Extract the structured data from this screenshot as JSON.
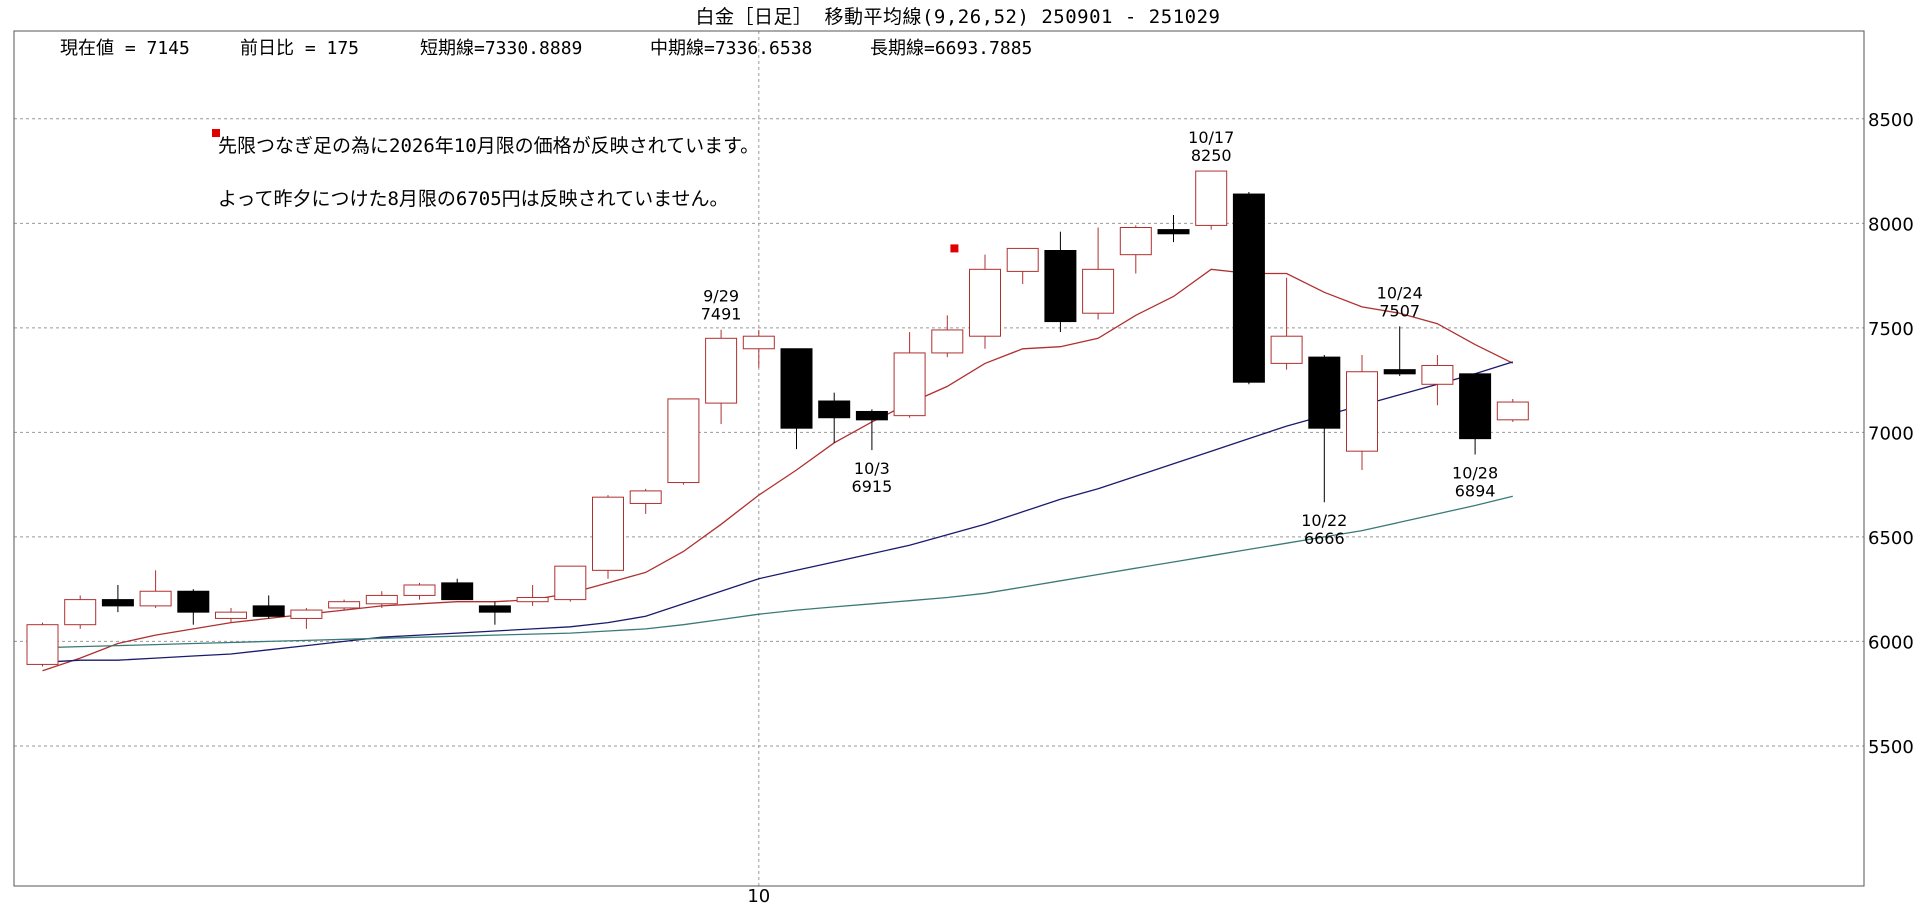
{
  "header": {
    "title": "白金［日足］ 移動平均線(9,26,52)  250901 - 251029",
    "stats": [
      {
        "label": "現在値",
        "value": "7145"
      },
      {
        "label": "前日比",
        "value": "175"
      },
      {
        "label": "短期線",
        "value": "7330.8889"
      },
      {
        "label": "中期線",
        "value": "7336.6538"
      },
      {
        "label": "長期線",
        "value": "6693.7885"
      }
    ]
  },
  "notes": [
    "先限つなぎ足の為に2026年10月限の価格が反映されています。",
    "よって昨夕につけた8月限の6705円は反映されていません。"
  ],
  "chart_data": {
    "type": "candlestick",
    "title": "白金［日足］ 移動平均線(9,26,52)  250901 - 251029",
    "y_ticks": [
      5500,
      6000,
      6500,
      7000,
      7500,
      8000,
      8500
    ],
    "ylim": [
      4830,
      8920
    ],
    "x_tick_labels": [
      {
        "index": 19,
        "label": "10"
      }
    ],
    "grid": true,
    "colors": {
      "up": "#b03030",
      "down": "#000000",
      "ma_short": "#b03030",
      "ma_mid": "#1a1a6e",
      "ma_long": "#3a7a78",
      "marker": "#e00000",
      "grid": "#999999",
      "frame": "#555555"
    },
    "candles": [
      {
        "o": 5890,
        "h": 6090,
        "l": 5880,
        "c": 6080
      },
      {
        "o": 6080,
        "h": 6220,
        "l": 6060,
        "c": 6200
      },
      {
        "o": 6200,
        "h": 6270,
        "l": 6140,
        "c": 6170
      },
      {
        "o": 6170,
        "h": 6340,
        "l": 6160,
        "c": 6240
      },
      {
        "o": 6240,
        "h": 6250,
        "l": 6080,
        "c": 6140
      },
      {
        "o": 6110,
        "h": 6160,
        "l": 6090,
        "c": 6140
      },
      {
        "o": 6170,
        "h": 6220,
        "l": 6110,
        "c": 6120
      },
      {
        "o": 6110,
        "h": 6160,
        "l": 6060,
        "c": 6150
      },
      {
        "o": 6160,
        "h": 6200,
        "l": 6150,
        "c": 6190
      },
      {
        "o": 6180,
        "h": 6240,
        "l": 6160,
        "c": 6220
      },
      {
        "o": 6220,
        "h": 6280,
        "l": 6200,
        "c": 6270
      },
      {
        "o": 6280,
        "h": 6300,
        "l": 6200,
        "c": 6200
      },
      {
        "o": 6170,
        "h": 6190,
        "l": 6080,
        "c": 6140
      },
      {
        "o": 6190,
        "h": 6270,
        "l": 6170,
        "c": 6210
      },
      {
        "o": 6200,
        "h": 6360,
        "l": 6190,
        "c": 6360
      },
      {
        "o": 6340,
        "h": 6700,
        "l": 6300,
        "c": 6690
      },
      {
        "o": 6660,
        "h": 6730,
        "l": 6610,
        "c": 6720
      },
      {
        "o": 6760,
        "h": 7160,
        "l": 6750,
        "c": 7160
      },
      {
        "o": 7140,
        "h": 7491,
        "l": 7040,
        "c": 7450
      },
      {
        "o": 7400,
        "h": 7490,
        "l": 7310,
        "c": 7460
      },
      {
        "o": 7400,
        "h": 7400,
        "l": 6920,
        "c": 7020
      },
      {
        "o": 7150,
        "h": 7190,
        "l": 6950,
        "c": 7070
      },
      {
        "o": 7100,
        "h": 7110,
        "l": 6915,
        "c": 7060
      },
      {
        "o": 7080,
        "h": 7480,
        "l": 7070,
        "c": 7380
      },
      {
        "o": 7380,
        "h": 7560,
        "l": 7360,
        "c": 7490
      },
      {
        "o": 7460,
        "h": 7850,
        "l": 7400,
        "c": 7780
      },
      {
        "o": 7770,
        "h": 7880,
        "l": 7710,
        "c": 7880
      },
      {
        "o": 7870,
        "h": 7960,
        "l": 7480,
        "c": 7530
      },
      {
        "o": 7570,
        "h": 7980,
        "l": 7540,
        "c": 7780
      },
      {
        "o": 7850,
        "h": 7990,
        "l": 7760,
        "c": 7980
      },
      {
        "o": 7970,
        "h": 8040,
        "l": 7910,
        "c": 7950
      },
      {
        "o": 7990,
        "h": 8250,
        "l": 7970,
        "c": 8250
      },
      {
        "o": 8140,
        "h": 8150,
        "l": 7230,
        "c": 7240
      },
      {
        "o": 7330,
        "h": 7740,
        "l": 7300,
        "c": 7460
      },
      {
        "o": 7360,
        "h": 7370,
        "l": 6666,
        "c": 7020
      },
      {
        "o": 6910,
        "h": 7370,
        "l": 6820,
        "c": 7290
      },
      {
        "o": 7300,
        "h": 7507,
        "l": 7270,
        "c": 7280
      },
      {
        "o": 7230,
        "h": 7370,
        "l": 7130,
        "c": 7320
      },
      {
        "o": 7280,
        "h": 7280,
        "l": 6894,
        "c": 6970
      },
      {
        "o": 7060,
        "h": 7160,
        "l": 7050,
        "c": 7145
      }
    ],
    "series": [
      {
        "key": "ma_short",
        "values": [
          5860,
          5920,
          5990,
          6030,
          6060,
          6090,
          6110,
          6130,
          6150,
          6170,
          6180,
          6190,
          6190,
          6200,
          6230,
          6280,
          6330,
          6430,
          6560,
          6700,
          6820,
          6950,
          7050,
          7140,
          7220,
          7330,
          7400,
          7410,
          7450,
          7560,
          7650,
          7780,
          7760,
          7760,
          7670,
          7600,
          7570,
          7520,
          7420,
          7331
        ]
      },
      {
        "key": "ma_mid",
        "values": [
          5900,
          5910,
          5910,
          5920,
          5930,
          5940,
          5960,
          5980,
          6000,
          6020,
          6030,
          6040,
          6050,
          6060,
          6070,
          6090,
          6120,
          6180,
          6240,
          6300,
          6340,
          6380,
          6420,
          6460,
          6510,
          6560,
          6620,
          6680,
          6730,
          6790,
          6850,
          6910,
          6970,
          7030,
          7080,
          7130,
          7180,
          7230,
          7280,
          7337
        ]
      },
      {
        "key": "ma_long",
        "values": [
          5970,
          5975,
          5980,
          5985,
          5990,
          5995,
          6000,
          6005,
          6010,
          6015,
          6020,
          6025,
          6030,
          6035,
          6040,
          6050,
          6060,
          6080,
          6105,
          6130,
          6150,
          6165,
          6180,
          6195,
          6210,
          6230,
          6260,
          6290,
          6320,
          6350,
          6380,
          6410,
          6440,
          6470,
          6500,
          6530,
          6570,
          6610,
          6650,
          6694
        ]
      }
    ],
    "annotations": [
      {
        "index": 18,
        "date": "9/29",
        "value": "7491",
        "pos": "above"
      },
      {
        "index": 22,
        "date": "10/3",
        "value": "6915",
        "pos": "below"
      },
      {
        "index": 31,
        "date": "10/17",
        "value": "8250",
        "pos": "above"
      },
      {
        "index": 34,
        "date": "10/22",
        "value": "6666",
        "pos": "below"
      },
      {
        "index": 36,
        "date": "10/24",
        "value": "7507",
        "pos": "above"
      },
      {
        "index": 38,
        "date": "10/28",
        "value": "6894",
        "pos": "below"
      }
    ],
    "markers": [
      {
        "index": 24.6,
        "value": 7880
      }
    ]
  }
}
